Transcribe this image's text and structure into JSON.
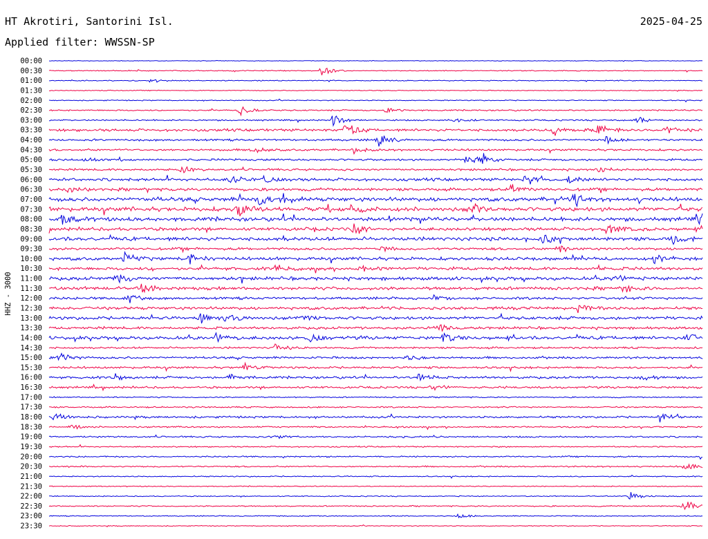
{
  "header": {
    "station": "HT Akrotiri, Santorini Isl.",
    "date": "2025-04-25",
    "filter": "Applied filter: WWSSN-SP"
  },
  "colors": {
    "trace_even": "#0000dd",
    "trace_odd": "#ee0044",
    "text": "#000000",
    "background": "#ffffff"
  },
  "chart_data": {
    "type": "line",
    "title": "HT Akrotiri, Santorini Isl.",
    "ylabel": "HHZ - 3000",
    "xlabel": "",
    "row_labels": [
      "00:00",
      "00:30",
      "01:00",
      "01:30",
      "02:00",
      "02:30",
      "03:00",
      "03:30",
      "04:00",
      "04:30",
      "05:00",
      "05:30",
      "06:00",
      "06:30",
      "07:00",
      "07:30",
      "08:00",
      "08:30",
      "09:00",
      "09:30",
      "10:00",
      "10:30",
      "11:00",
      "11:30",
      "12:00",
      "12:30",
      "13:00",
      "13:30",
      "14:00",
      "14:30",
      "15:00",
      "15:30",
      "16:00",
      "16:30",
      "17:00",
      "17:30",
      "18:00",
      "18:30",
      "19:00",
      "19:30",
      "20:00",
      "20:30",
      "21:00",
      "21:30",
      "22:00",
      "22:30",
      "23:00",
      "23:30"
    ],
    "trace_activity": [
      0.4,
      0.6,
      0.6,
      0.5,
      0.6,
      0.9,
      0.9,
      1.6,
      1.3,
      1.3,
      1.3,
      1.3,
      1.8,
      1.8,
      2.5,
      2.6,
      2.4,
      2.0,
      2.3,
      1.6,
      2.0,
      1.9,
      2.1,
      2.0,
      1.6,
      1.8,
      2.0,
      1.6,
      2.0,
      1.2,
      1.4,
      1.4,
      1.5,
      1.3,
      0.8,
      0.9,
      1.3,
      1.0,
      1.0,
      0.8,
      0.9,
      0.9,
      0.7,
      0.6,
      0.6,
      0.8,
      0.6,
      0.5
    ],
    "events": [
      {
        "row": "00:30",
        "minute": 12.5,
        "amp": 8
      },
      {
        "row": "01:00",
        "minute": 4.7,
        "amp": 4
      },
      {
        "row": "02:30",
        "minute": 8.8,
        "amp": 10
      },
      {
        "row": "02:30",
        "minute": 15.5,
        "amp": 5
      },
      {
        "row": "03:00",
        "minute": 13.0,
        "amp": 9
      },
      {
        "row": "03:00",
        "minute": 18.6,
        "amp": 4
      },
      {
        "row": "03:00",
        "minute": 26.9,
        "amp": 10
      },
      {
        "row": "03:30",
        "minute": 13.6,
        "amp": 16
      },
      {
        "row": "03:30",
        "minute": 23.2,
        "amp": 9
      },
      {
        "row": "03:30",
        "minute": 25.2,
        "amp": 12
      },
      {
        "row": "03:30",
        "minute": 28.3,
        "amp": 6
      },
      {
        "row": "04:00",
        "minute": 15.1,
        "amp": 12
      },
      {
        "row": "04:00",
        "minute": 25.6,
        "amp": 6
      },
      {
        "row": "04:30",
        "minute": 9.3,
        "amp": 6
      },
      {
        "row": "04:30",
        "minute": 14.0,
        "amp": 6
      },
      {
        "row": "05:00",
        "minute": 1.7,
        "amp": 5
      },
      {
        "row": "05:00",
        "minute": 19.2,
        "amp": 9
      },
      {
        "row": "05:00",
        "minute": 19.9,
        "amp": 8
      },
      {
        "row": "05:30",
        "minute": 6.1,
        "amp": 8
      },
      {
        "row": "05:30",
        "minute": 25.2,
        "amp": 5
      },
      {
        "row": "06:00",
        "minute": 8.3,
        "amp": 6
      },
      {
        "row": "06:00",
        "minute": 9.9,
        "amp": 7
      },
      {
        "row": "06:00",
        "minute": 21.9,
        "amp": 9
      },
      {
        "row": "06:00",
        "minute": 23.8,
        "amp": 9
      },
      {
        "row": "06:30",
        "minute": 0.8,
        "amp": 6
      },
      {
        "row": "06:30",
        "minute": 21.2,
        "amp": 9
      },
      {
        "row": "07:00",
        "minute": 9.6,
        "amp": 12
      },
      {
        "row": "07:00",
        "minute": 10.7,
        "amp": 10
      },
      {
        "row": "07:00",
        "minute": 24.1,
        "amp": 10
      },
      {
        "row": "07:30",
        "minute": 8.7,
        "amp": 12
      },
      {
        "row": "07:30",
        "minute": 13.9,
        "amp": 8
      },
      {
        "row": "07:30",
        "minute": 19.5,
        "amp": 7
      },
      {
        "row": "08:00",
        "minute": 0.6,
        "amp": 8
      },
      {
        "row": "08:00",
        "minute": 29.9,
        "amp": 14
      },
      {
        "row": "08:30",
        "minute": 25.6,
        "amp": 10
      },
      {
        "row": "08:30",
        "minute": 14.0,
        "amp": 8
      },
      {
        "row": "09:00",
        "minute": 22.7,
        "amp": 9
      },
      {
        "row": "09:00",
        "minute": 28.6,
        "amp": 9
      },
      {
        "row": "09:30",
        "minute": 15.2,
        "amp": 6
      },
      {
        "row": "09:30",
        "minute": 23.4,
        "amp": 8
      },
      {
        "row": "10:00",
        "minute": 3.5,
        "amp": 9
      },
      {
        "row": "10:00",
        "minute": 6.4,
        "amp": 10
      },
      {
        "row": "10:00",
        "minute": 27.8,
        "amp": 9
      },
      {
        "row": "10:30",
        "minute": 10.4,
        "amp": 7
      },
      {
        "row": "10:30",
        "minute": 14.3,
        "amp": 6
      },
      {
        "row": "11:00",
        "minute": 3.1,
        "amp": 9
      },
      {
        "row": "11:00",
        "minute": 25.9,
        "amp": 8
      },
      {
        "row": "11:30",
        "minute": 4.3,
        "amp": 12
      },
      {
        "row": "11:30",
        "minute": 26.5,
        "amp": 6
      },
      {
        "row": "12:00",
        "minute": 3.6,
        "amp": 8
      },
      {
        "row": "12:00",
        "minute": 17.7,
        "amp": 5
      },
      {
        "row": "12:30",
        "minute": 24.3,
        "amp": 7
      },
      {
        "row": "13:00",
        "minute": 7.0,
        "amp": 8
      },
      {
        "row": "13:00",
        "minute": 8.1,
        "amp": 7
      },
      {
        "row": "13:00",
        "minute": 11.5,
        "amp": 5
      },
      {
        "row": "13:30",
        "minute": 17.9,
        "amp": 8
      },
      {
        "row": "14:00",
        "minute": 7.6,
        "amp": 10
      },
      {
        "row": "14:00",
        "minute": 12.0,
        "amp": 8
      },
      {
        "row": "14:00",
        "minute": 18.1,
        "amp": 7
      },
      {
        "row": "14:00",
        "minute": 29.3,
        "amp": 9
      },
      {
        "row": "14:30",
        "minute": 10.4,
        "amp": 6
      },
      {
        "row": "15:00",
        "minute": 0.5,
        "amp": 8
      },
      {
        "row": "15:00",
        "minute": 16.5,
        "amp": 6
      },
      {
        "row": "15:30",
        "minute": 8.9,
        "amp": 7
      },
      {
        "row": "16:00",
        "minute": 3.0,
        "amp": 7
      },
      {
        "row": "16:00",
        "minute": 8.3,
        "amp": 7
      },
      {
        "row": "16:00",
        "minute": 17.0,
        "amp": 6
      },
      {
        "row": "16:00",
        "minute": 27.2,
        "amp": 7
      },
      {
        "row": "16:30",
        "minute": 17.6,
        "amp": 8
      },
      {
        "row": "18:00",
        "minute": 0.2,
        "amp": 9
      },
      {
        "row": "18:00",
        "minute": 28.0,
        "amp": 10
      },
      {
        "row": "18:30",
        "minute": 1.0,
        "amp": 6
      },
      {
        "row": "19:00",
        "minute": 10.2,
        "amp": 5
      },
      {
        "row": "20:00",
        "minute": 30.0,
        "amp": 10
      },
      {
        "row": "20:30",
        "minute": 29.2,
        "amp": 7
      },
      {
        "row": "22:00",
        "minute": 26.7,
        "amp": 8
      },
      {
        "row": "22:30",
        "minute": 29.1,
        "amp": 18
      },
      {
        "row": "23:00",
        "minute": 18.8,
        "amp": 5
      }
    ]
  }
}
